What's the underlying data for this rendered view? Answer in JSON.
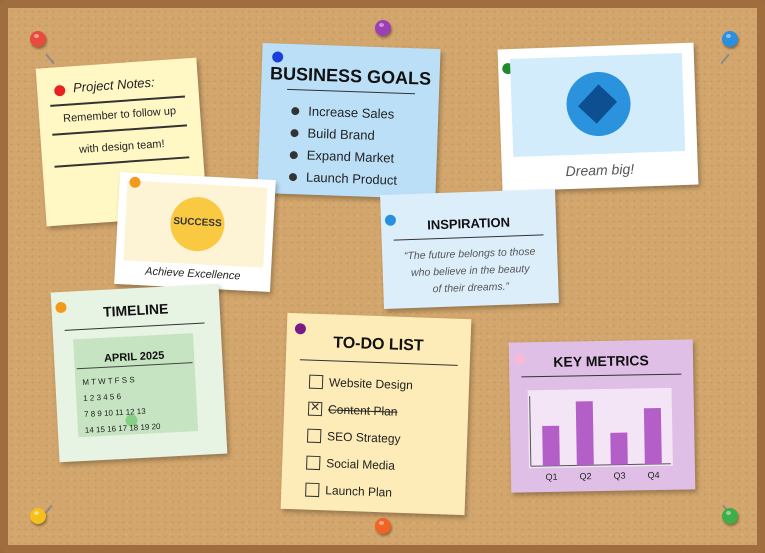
{
  "project_notes": {
    "title": "Project Notes:",
    "line1": "Remember to follow up",
    "line2": "with design team!"
  },
  "business_goals": {
    "title": "BUSINESS GOALS",
    "items": [
      "Increase Sales",
      "Build Brand",
      "Expand Market",
      "Launch Product"
    ]
  },
  "dream": {
    "caption": "Dream big!"
  },
  "success": {
    "badge": "SUCCESS",
    "caption": "Achieve Excellence"
  },
  "inspiration": {
    "title": "INSPIRATION",
    "quote_lines": [
      "“The future belongs to those",
      "who believe in the beauty",
      "of their dreams.”"
    ]
  },
  "timeline": {
    "title": "TIMELINE",
    "month": "APRIL 2025",
    "rows": [
      "M T W T F S S",
      "1 2 3 4 5 6",
      "7 8 9 10 11 12 13",
      "14 15 16 17 18 19 20"
    ]
  },
  "todo": {
    "title": "TO-DO LIST",
    "items": [
      {
        "label": "Website Design",
        "done": false
      },
      {
        "label": "Content Plan",
        "done": true
      },
      {
        "label": "SEO Strategy",
        "done": false
      },
      {
        "label": "Social Media",
        "done": false
      },
      {
        "label": "Launch Plan",
        "done": false
      }
    ]
  },
  "metrics": {
    "title": "KEY METRICS",
    "chart_data": {
      "type": "bar",
      "categories": [
        "Q1",
        "Q2",
        "Q3",
        "Q4"
      ],
      "values": [
        5,
        8,
        4,
        7
      ],
      "color": "#b45fc8"
    }
  },
  "colors": {
    "board": "#d2a66c",
    "frame": "#a06d3e",
    "pins": [
      "#e84a3c",
      "#9b3fb5",
      "#2b8fe0",
      "#f5c01c",
      "#f26326",
      "#3fae49"
    ]
  }
}
